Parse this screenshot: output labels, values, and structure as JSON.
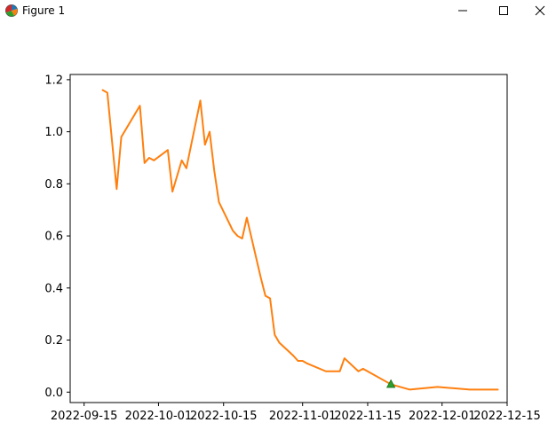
{
  "window": {
    "title": "Figure 1",
    "icon": "matplotlib-figure-icon",
    "controls": [
      "minimize-icon",
      "maximize-icon",
      "close-icon"
    ]
  },
  "chart_data": {
    "type": "line",
    "title": "",
    "xlabel": "",
    "ylabel": "",
    "x_tick_labels": [
      "2022-09-15",
      "2022-10-01",
      "2022-10-15",
      "2022-11-01",
      "2022-11-15",
      "2022-12-01",
      "2022-12-15"
    ],
    "y_tick_labels": [
      "0.0",
      "0.2",
      "0.4",
      "0.6",
      "0.8",
      "1.0",
      "1.2"
    ],
    "xlim": [
      "2022-09-12",
      "2022-12-15"
    ],
    "ylim": [
      -0.04,
      1.22
    ],
    "grid": false,
    "legend": null,
    "series": [
      {
        "color": "#ff7f0e",
        "x": [
          "2022-09-19",
          "2022-09-20",
          "2022-09-22",
          "2022-09-23",
          "2022-09-27",
          "2022-09-28",
          "2022-09-29",
          "2022-09-30",
          "2022-10-03",
          "2022-10-04",
          "2022-10-06",
          "2022-10-07",
          "2022-10-10",
          "2022-10-11",
          "2022-10-12",
          "2022-10-13",
          "2022-10-14",
          "2022-10-17",
          "2022-10-18",
          "2022-10-19",
          "2022-10-20",
          "2022-10-23",
          "2022-10-24",
          "2022-10-25",
          "2022-10-26",
          "2022-10-27",
          "2022-10-30",
          "2022-10-31",
          "2022-11-01",
          "2022-11-02",
          "2022-11-06",
          "2022-11-09",
          "2022-11-10",
          "2022-11-13",
          "2022-11-14",
          "2022-11-20",
          "2022-11-24",
          "2022-11-30",
          "2022-12-07",
          "2022-12-13"
        ],
        "y": [
          1.16,
          1.15,
          0.78,
          0.98,
          1.1,
          0.88,
          0.9,
          0.89,
          0.93,
          0.77,
          0.89,
          0.86,
          1.12,
          0.95,
          1.0,
          0.85,
          0.73,
          0.62,
          0.6,
          0.59,
          0.67,
          0.44,
          0.37,
          0.36,
          0.22,
          0.19,
          0.14,
          0.12,
          0.12,
          0.11,
          0.08,
          0.08,
          0.13,
          0.08,
          0.09,
          0.03,
          0.01,
          0.02,
          0.01,
          0.01
        ]
      }
    ],
    "markers": [
      {
        "x": "2022-11-20",
        "y": 0.03,
        "shape": "triangle",
        "color": "#2ca02c"
      }
    ]
  }
}
